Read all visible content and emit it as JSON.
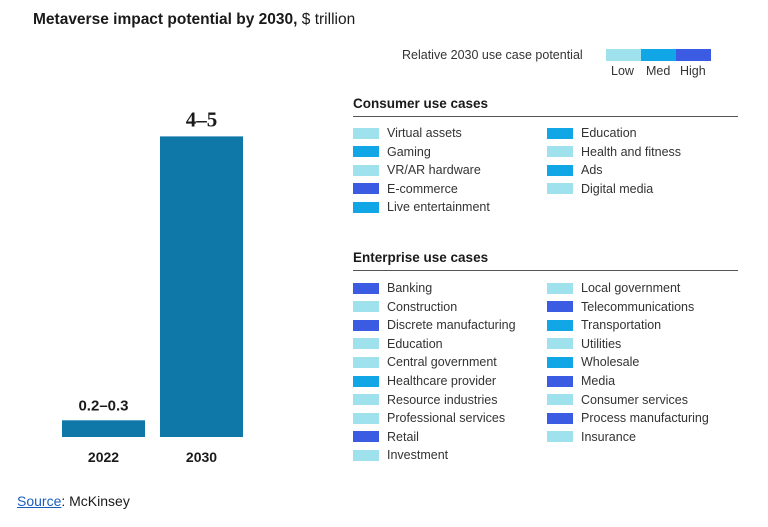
{
  "title": {
    "main": "Metaverse impact potential by 2030,",
    "unit": "$ trillion"
  },
  "legend": {
    "label": "Relative 2030 use case potential",
    "levels": [
      {
        "name": "Low",
        "color": "#9fe2ee"
      },
      {
        "name": "Med",
        "color": "#11a6e6"
      },
      {
        "name": "High",
        "color": "#3b5be3"
      }
    ]
  },
  "chart_data": {
    "type": "bar",
    "title": "Metaverse impact potential by 2030, $ trillion",
    "categories": [
      "2022",
      "2030"
    ],
    "values": [
      0.25,
      4.5
    ],
    "value_labels": [
      "0.2–0.3",
      "4–5"
    ],
    "ylim": [
      0,
      5
    ],
    "bar_color": "#0f78a8",
    "xlabel": "",
    "ylabel": ""
  },
  "consumer": {
    "heading": "Consumer use cases",
    "left": [
      {
        "label": "Virtual assets",
        "level": "Low"
      },
      {
        "label": "Gaming",
        "level": "Med"
      },
      {
        "label": "VR/AR hardware",
        "level": "Low"
      },
      {
        "label": "E-commerce",
        "level": "High"
      },
      {
        "label": "Live entertainment",
        "level": "Med"
      }
    ],
    "right": [
      {
        "label": "Education",
        "level": "Med"
      },
      {
        "label": "Health and fitness",
        "level": "Low"
      },
      {
        "label": "Ads",
        "level": "Med"
      },
      {
        "label": "Digital media",
        "level": "Low"
      }
    ]
  },
  "enterprise": {
    "heading": "Enterprise use cases",
    "left": [
      {
        "label": "Banking",
        "level": "High"
      },
      {
        "label": "Construction",
        "level": "Low"
      },
      {
        "label": "Discrete manufacturing",
        "level": "High"
      },
      {
        "label": "Education",
        "level": "Low"
      },
      {
        "label": "Central government",
        "level": "Low"
      },
      {
        "label": "Healthcare provider",
        "level": "Med"
      },
      {
        "label": "Resource industries",
        "level": "Low"
      },
      {
        "label": "Professional services",
        "level": "Low"
      },
      {
        "label": "Retail",
        "level": "High"
      },
      {
        "label": "Investment",
        "level": "Low"
      }
    ],
    "right": [
      {
        "label": "Local government",
        "level": "Low"
      },
      {
        "label": "Telecommunications",
        "level": "High"
      },
      {
        "label": "Transportation",
        "level": "Med"
      },
      {
        "label": "Utilities",
        "level": "Low"
      },
      {
        "label": "Wholesale",
        "level": "Med"
      },
      {
        "label": "Media",
        "level": "High"
      },
      {
        "label": "Consumer services",
        "level": "Low"
      },
      {
        "label": "Process manufacturing",
        "level": "High"
      },
      {
        "label": "Insurance",
        "level": "Low"
      }
    ]
  },
  "source": {
    "label": "Source",
    "value": ": McKinsey"
  }
}
